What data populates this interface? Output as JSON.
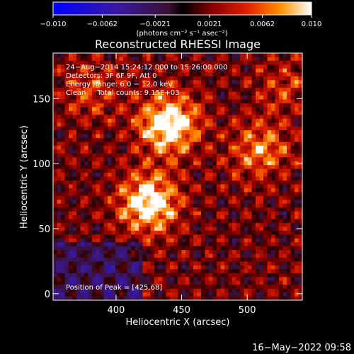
{
  "chart_data": {
    "type": "heatmap",
    "title": "Reconstructed RHESSI Image",
    "xlabel": "Heliocentric X (arcsec)",
    "ylabel": "Heliocentric Y (arcsec)",
    "xlim": [
      352,
      542
    ],
    "ylim": [
      -5,
      185
    ],
    "xticks": [
      "400",
      "450",
      "500"
    ],
    "xtick_values": [
      400,
      450,
      500
    ],
    "yticks": [
      "0",
      "50",
      "100",
      "150"
    ],
    "ytick_values": [
      0,
      50,
      100,
      150
    ],
    "colorbar": {
      "range": [
        -0.01,
        0.01
      ],
      "tick_labels": [
        "−0.010",
        "−0.0062",
        "−0.0021",
        "0.0021",
        "0.0062",
        "0.010"
      ],
      "tick_values": [
        -0.01,
        -0.0062,
        -0.0021,
        0.0021,
        0.0062,
        0.01
      ],
      "units": "(photons cm⁻² s⁻¹ asec⁻²)"
    },
    "annotations": [
      "24−Aug−2014 15:24:12.000 to 15:26:00.000",
      "Detectors: 3F 6F 9F, Att 0",
      "Energy Range: 6.0 − 12.0 keV",
      "Clean     Total counts: 9.15E+03"
    ],
    "peak_label": "Position of Peak = [425,68]",
    "peak": [
      425,
      68
    ],
    "sources": [
      {
        "x": 440,
        "y": 130,
        "intensity": 1.0
      },
      {
        "x": 425,
        "y": 70,
        "intensity": 0.95
      },
      {
        "x": 510,
        "y": 110,
        "intensity": 0.55
      },
      {
        "x": 380,
        "y": 155,
        "intensity": 0.35
      },
      {
        "x": 530,
        "y": 160,
        "intensity": 0.3
      }
    ],
    "grid": false
  },
  "footer_timestamp": "16−May−2022 09:58"
}
